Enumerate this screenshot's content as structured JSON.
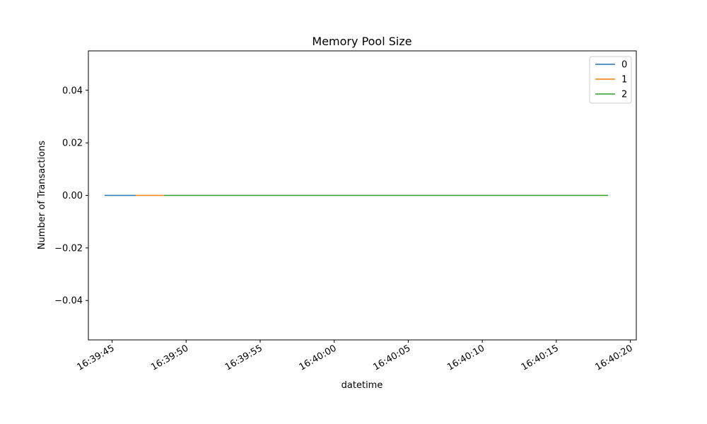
{
  "chart_data": {
    "type": "line",
    "title": "Memory Pool Size",
    "xlabel": "datetime",
    "ylabel": "Number of Transactions",
    "xlim": [
      "16:39:43.4",
      "16:40:20.4"
    ],
    "ylim": [
      -0.055,
      0.055
    ],
    "grid": false,
    "legend": "top-right",
    "x_ticks": [
      "16:39:45",
      "16:39:50",
      "16:39:55",
      "16:40:00",
      "16:40:05",
      "16:40:10",
      "16:40:15",
      "16:40:20"
    ],
    "y_ticks": [
      "0.04",
      "0.02",
      "0.00",
      "−0.02",
      "−0.04"
    ],
    "series": [
      {
        "name": "0",
        "color": "#1f77b4",
        "x": [
          "16:39:44.5",
          "16:39:46.6"
        ],
        "y": [
          0,
          0
        ]
      },
      {
        "name": "1",
        "color": "#ff7f0e",
        "x": [
          "16:39:46.6",
          "16:39:48.5"
        ],
        "y": [
          0,
          0
        ]
      },
      {
        "name": "2",
        "color": "#2ca02c",
        "x": [
          "16:39:48.5",
          "16:40:18.5"
        ],
        "y": [
          0,
          0
        ]
      }
    ]
  }
}
